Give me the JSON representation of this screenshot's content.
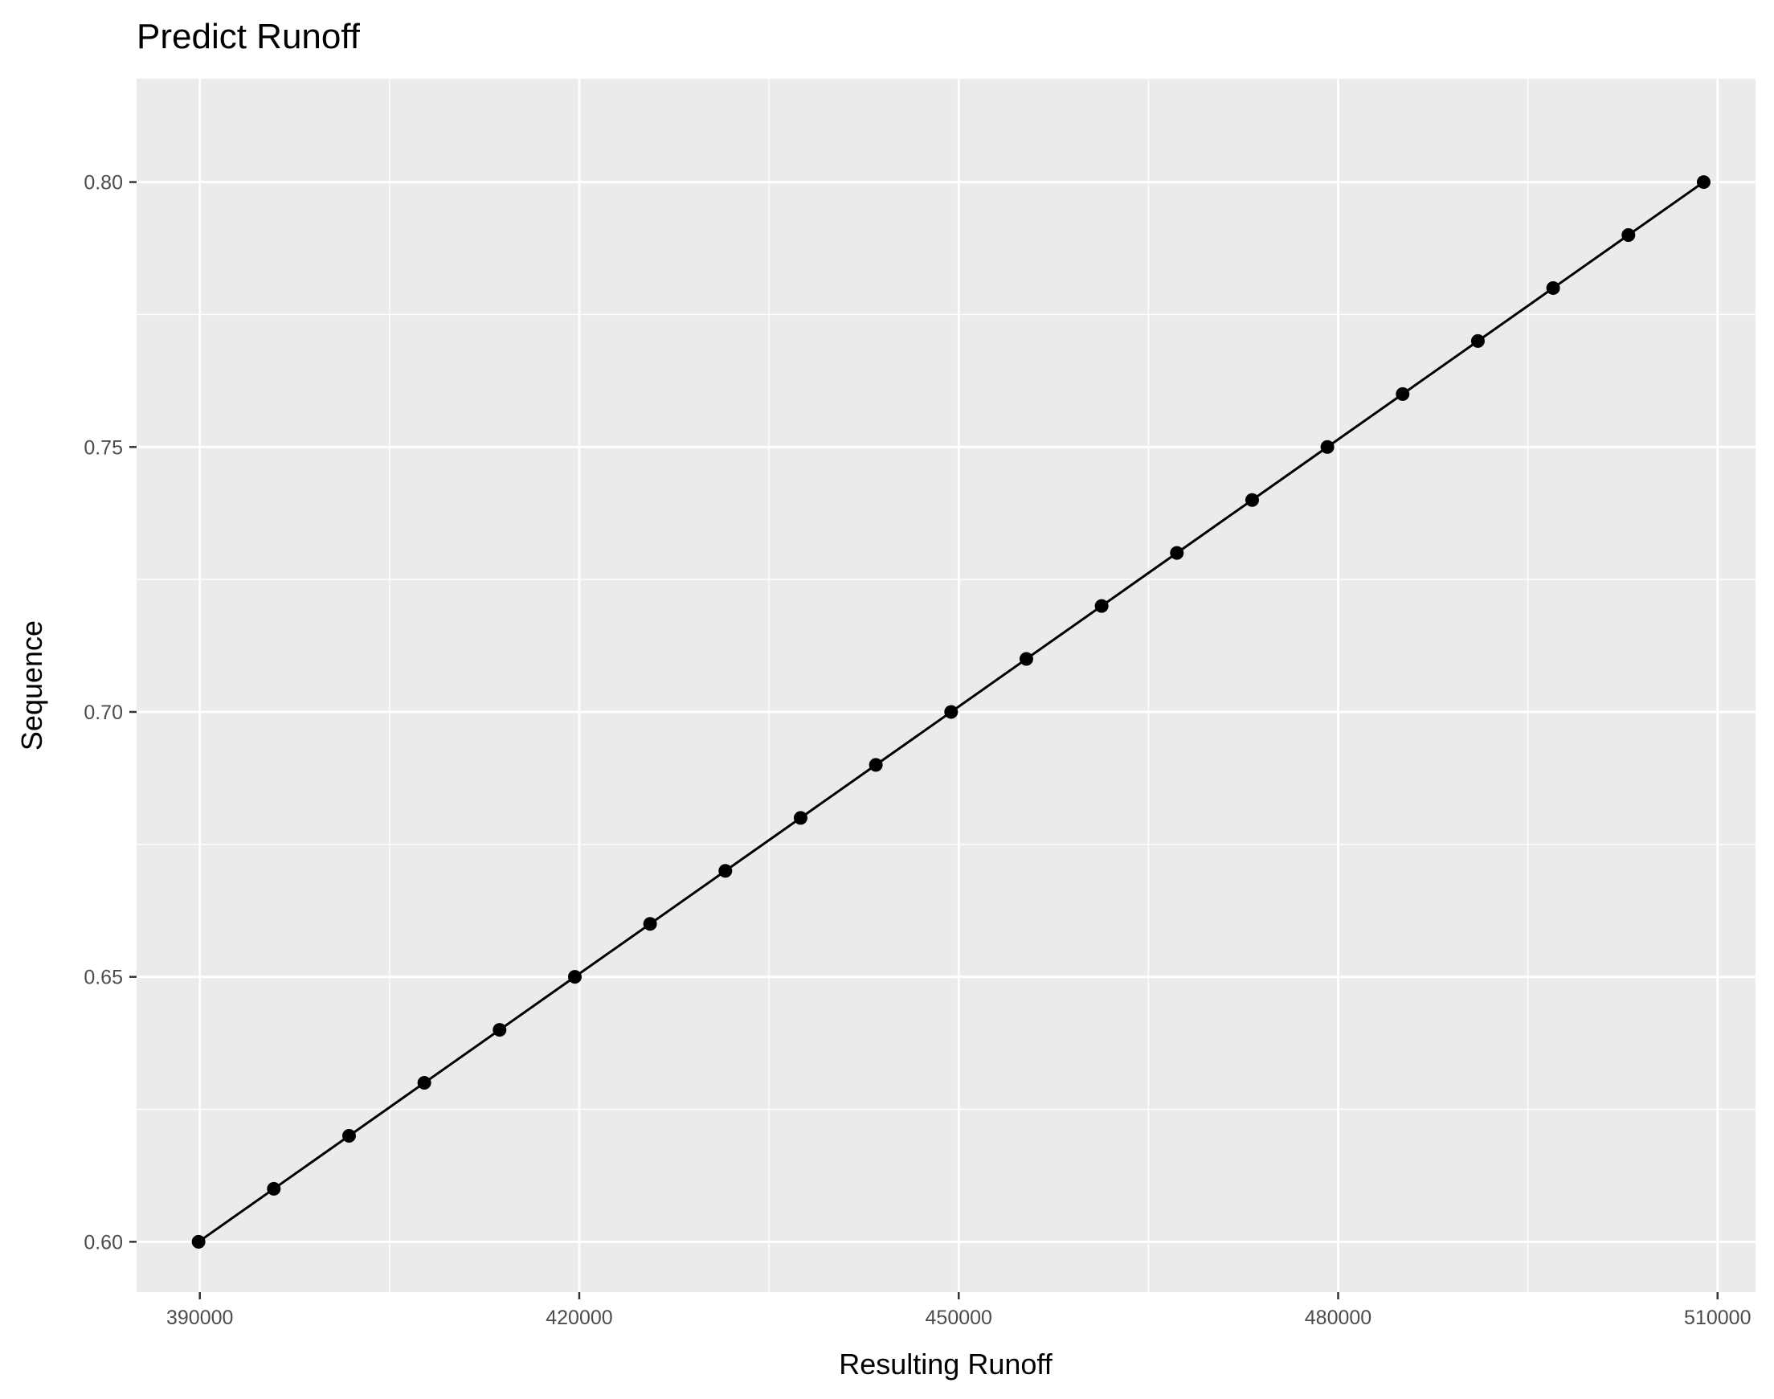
{
  "chart_data": {
    "type": "line",
    "title": "Predict Runoff",
    "xlabel": "Resulting Runoff",
    "ylabel": "Sequence",
    "xlim": [
      385000,
      513000
    ],
    "ylim": [
      0.5905,
      0.8195
    ],
    "x_ticks": [
      390000,
      420000,
      450000,
      480000,
      510000
    ],
    "x_tick_labels": [
      "390000",
      "420000",
      "450000",
      "480000",
      "510000"
    ],
    "x_minor_ticks": [
      405000,
      435000,
      465000,
      495000
    ],
    "y_ticks": [
      0.6,
      0.65,
      0.7,
      0.75,
      0.8
    ],
    "y_tick_labels": [
      "0.60",
      "0.65",
      "0.70",
      "0.75",
      "0.80"
    ],
    "y_minor_ticks": [
      0.625,
      0.675,
      0.725,
      0.775
    ],
    "grid": true,
    "colors": {
      "panel_background": "#ebebeb",
      "grid": "#ffffff",
      "series": "#000000",
      "tick_label": "#4d4d4d",
      "tick_mark": "#333333"
    },
    "series": [
      {
        "name": "",
        "points": [
          {
            "x": 389900,
            "y": 0.6
          },
          {
            "x": 395850,
            "y": 0.61
          },
          {
            "x": 401800,
            "y": 0.62
          },
          {
            "x": 407750,
            "y": 0.63
          },
          {
            "x": 413700,
            "y": 0.64
          },
          {
            "x": 419650,
            "y": 0.65
          },
          {
            "x": 425600,
            "y": 0.66
          },
          {
            "x": 431550,
            "y": 0.67
          },
          {
            "x": 437500,
            "y": 0.68
          },
          {
            "x": 443450,
            "y": 0.69
          },
          {
            "x": 449400,
            "y": 0.7
          },
          {
            "x": 455350,
            "y": 0.71
          },
          {
            "x": 461300,
            "y": 0.72
          },
          {
            "x": 467250,
            "y": 0.73
          },
          {
            "x": 473200,
            "y": 0.74
          },
          {
            "x": 479150,
            "y": 0.75
          },
          {
            "x": 485100,
            "y": 0.76
          },
          {
            "x": 491050,
            "y": 0.77
          },
          {
            "x": 497000,
            "y": 0.78
          },
          {
            "x": 502950,
            "y": 0.79
          },
          {
            "x": 508900,
            "y": 0.8
          }
        ]
      }
    ]
  }
}
